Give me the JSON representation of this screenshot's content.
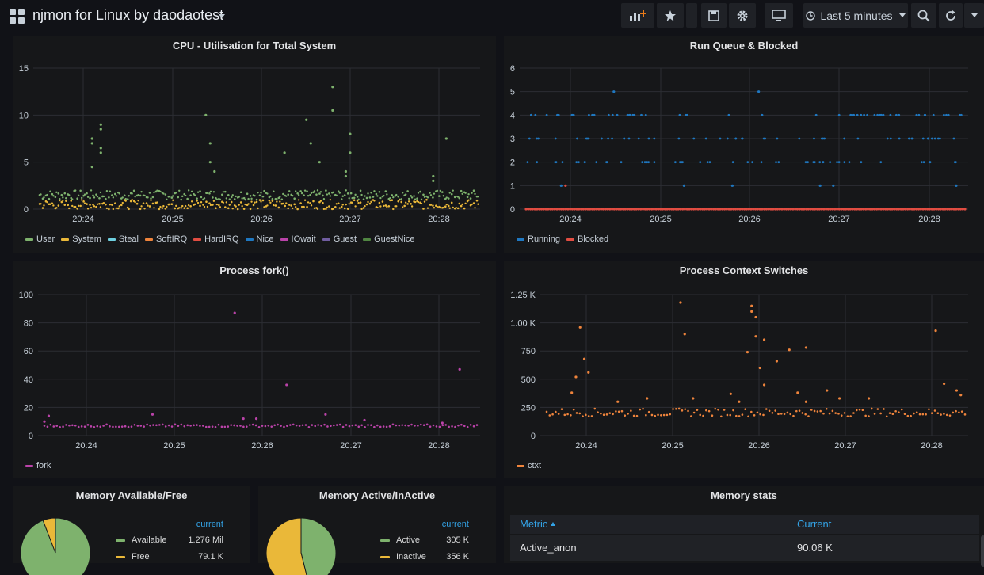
{
  "header": {
    "title": "njmon for Linux by daodaotest",
    "time_range": "Last 5 minutes",
    "icons": [
      "add-panel-icon",
      "star-icon",
      "save-icon",
      "gear-icon",
      "tv-mode-icon",
      "clock-icon",
      "zoom-out-icon",
      "refresh-icon",
      "chevron-down-icon"
    ]
  },
  "colors": {
    "background": "#111217",
    "panel": "#161719",
    "grid": "#2c2e33",
    "axis_text": "#c7d0d9",
    "green": "#7eb26d",
    "yellow": "#eab839",
    "blue": "#1f78c1",
    "red": "#e24d42",
    "purple": "#ba43a9",
    "orange": "#ef843c",
    "accent": "#33a2e5"
  },
  "panels": {
    "cpu": {
      "title": "CPU - Utilisation for Total System",
      "legend": [
        {
          "label": "User",
          "color": "#7eb26d"
        },
        {
          "label": "System",
          "color": "#eab839"
        },
        {
          "label": "Steal",
          "color": "#6ed0e0"
        },
        {
          "label": "SoftIRQ",
          "color": "#ef843c"
        },
        {
          "label": "HardIRQ",
          "color": "#e24d42"
        },
        {
          "label": "Nice",
          "color": "#1f78c1"
        },
        {
          "label": "IOwait",
          "color": "#ba43a9"
        },
        {
          "label": "Guest",
          "color": "#705da0"
        },
        {
          "label": "GuestNice",
          "color": "#508642"
        }
      ]
    },
    "runq": {
      "title": "Run Queue & Blocked",
      "legend": [
        {
          "label": "Running",
          "color": "#1f78c1"
        },
        {
          "label": "Blocked",
          "color": "#e24d42"
        }
      ]
    },
    "fork": {
      "title": "Process fork()",
      "legend": [
        {
          "label": "fork",
          "color": "#ba43a9"
        }
      ]
    },
    "ctx": {
      "title": "Process Context Switches",
      "legend": [
        {
          "label": "ctxt",
          "color": "#ef843c"
        }
      ]
    },
    "mem_free": {
      "title": "Memory Available/Free",
      "column": "current",
      "rows": [
        {
          "label": "Available",
          "value": "1.276 Mil",
          "color": "#7eb26d"
        },
        {
          "label": "Free",
          "value": "79.1 K",
          "color": "#eab839"
        }
      ]
    },
    "mem_active": {
      "title": "Memory Active/InActive",
      "column": "current",
      "rows": [
        {
          "label": "Active",
          "value": "305 K",
          "color": "#7eb26d"
        },
        {
          "label": "Inactive",
          "value": "356 K",
          "color": "#eab839"
        }
      ]
    },
    "mem_stats": {
      "title": "Memory stats",
      "columns": [
        "Metric",
        "Current"
      ],
      "rows": [
        [
          "Active_anon",
          "90.06 K"
        ]
      ]
    }
  },
  "chart_data": [
    {
      "type": "scatter",
      "title": "CPU - Utilisation for Total System",
      "x_ticks": [
        "20:24",
        "20:25",
        "20:26",
        "20:27",
        "20:28"
      ],
      "y_ticks": [
        "0",
        "5",
        "10",
        "15"
      ],
      "ylim": [
        0,
        15
      ],
      "series": [
        {
          "name": "User",
          "color": "#7eb26d",
          "baseline": [
            1,
            2
          ],
          "spikes": [
            [
              0.12,
              4.5
            ],
            [
              0.12,
              7
            ],
            [
              0.12,
              7.5
            ],
            [
              0.14,
              6
            ],
            [
              0.14,
              6.5
            ],
            [
              0.14,
              8.5
            ],
            [
              0.14,
              9
            ],
            [
              0.38,
              10
            ],
            [
              0.39,
              7
            ],
            [
              0.39,
              5
            ],
            [
              0.4,
              4
            ],
            [
              0.56,
              6
            ],
            [
              0.61,
              9.5
            ],
            [
              0.62,
              7
            ],
            [
              0.64,
              5
            ],
            [
              0.67,
              10.5
            ],
            [
              0.67,
              13
            ],
            [
              0.7,
              3.5
            ],
            [
              0.7,
              4
            ],
            [
              0.71,
              6
            ],
            [
              0.71,
              8
            ],
            [
              0.93,
              7.5
            ],
            [
              0.9,
              3.5
            ],
            [
              0.9,
              3
            ]
          ]
        },
        {
          "name": "System",
          "color": "#eab839",
          "baseline": [
            0,
            1
          ],
          "spikes": []
        }
      ],
      "legend_position": "bottom-left"
    },
    {
      "type": "scatter",
      "title": "Run Queue & Blocked",
      "x_ticks": [
        "20:24",
        "20:25",
        "20:26",
        "20:27",
        "20:28"
      ],
      "y_ticks": [
        "0",
        "1",
        "2",
        "3",
        "4",
        "5",
        "6"
      ],
      "ylim": [
        0,
        6
      ],
      "series": [
        {
          "name": "Running",
          "color": "#1f78c1",
          "levels": [
            2,
            3,
            4
          ],
          "extra": [
            [
              0.2,
              5
            ],
            [
              0.53,
              5
            ],
            [
              0.08,
              1
            ],
            [
              0.36,
              1
            ],
            [
              0.47,
              1
            ],
            [
              0.67,
              1
            ],
            [
              0.7,
              1
            ],
            [
              0.98,
              1
            ]
          ]
        },
        {
          "name": "Blocked",
          "color": "#e24d42",
          "levels": [
            0
          ],
          "extra": [
            [
              0.09,
              1
            ]
          ]
        }
      ],
      "legend_position": "bottom-left"
    },
    {
      "type": "scatter",
      "title": "Process fork()",
      "x_ticks": [
        "20:24",
        "20:25",
        "20:26",
        "20:27",
        "20:28"
      ],
      "y_ticks": [
        "0",
        "20",
        "40",
        "60",
        "80",
        "100"
      ],
      "ylim": [
        0,
        100
      ],
      "series": [
        {
          "name": "fork",
          "color": "#ba43a9",
          "baseline": [
            6,
            8
          ],
          "spikes": [
            [
              0.0,
              10
            ],
            [
              0.01,
              14
            ],
            [
              0.25,
              15
            ],
            [
              0.44,
              87
            ],
            [
              0.46,
              12
            ],
            [
              0.49,
              12
            ],
            [
              0.56,
              36
            ],
            [
              0.65,
              15
            ],
            [
              0.74,
              11
            ],
            [
              0.92,
              9
            ],
            [
              0.96,
              47
            ]
          ]
        }
      ],
      "legend_position": "bottom-left"
    },
    {
      "type": "scatter",
      "title": "Process Context Switches",
      "x_ticks": [
        "20:24",
        "20:25",
        "20:26",
        "20:27",
        "20:28"
      ],
      "y_ticks": [
        "0",
        "250",
        "500",
        "750",
        "1.00 K",
        "1.25 K"
      ],
      "ylim": [
        0,
        1250
      ],
      "series": [
        {
          "name": "ctxt",
          "color": "#ef843c",
          "baseline": [
            170,
            240
          ],
          "spikes": [
            [
              0.06,
              380
            ],
            [
              0.07,
              520
            ],
            [
              0.08,
              960
            ],
            [
              0.09,
              680
            ],
            [
              0.1,
              560
            ],
            [
              0.17,
              300
            ],
            [
              0.24,
              330
            ],
            [
              0.32,
              1180
            ],
            [
              0.33,
              900
            ],
            [
              0.35,
              330
            ],
            [
              0.44,
              370
            ],
            [
              0.46,
              300
            ],
            [
              0.48,
              740
            ],
            [
              0.49,
              1150
            ],
            [
              0.49,
              1100
            ],
            [
              0.5,
              1050
            ],
            [
              0.5,
              880
            ],
            [
              0.52,
              850
            ],
            [
              0.51,
              600
            ],
            [
              0.52,
              450
            ],
            [
              0.55,
              660
            ],
            [
              0.58,
              760
            ],
            [
              0.62,
              780
            ],
            [
              0.6,
              380
            ],
            [
              0.62,
              300
            ],
            [
              0.67,
              400
            ],
            [
              0.7,
              330
            ],
            [
              0.77,
              330
            ],
            [
              0.93,
              930
            ],
            [
              0.95,
              460
            ],
            [
              0.98,
              400
            ],
            [
              0.99,
              360
            ]
          ]
        }
      ],
      "legend_position": "bottom-left"
    },
    {
      "type": "pie",
      "title": "Memory Available/Free",
      "categories": [
        "Available",
        "Free"
      ],
      "values": [
        1276000,
        79100
      ]
    },
    {
      "type": "pie",
      "title": "Memory Active/InActive",
      "categories": [
        "Active",
        "Inactive"
      ],
      "values": [
        305000,
        356000
      ]
    }
  ]
}
